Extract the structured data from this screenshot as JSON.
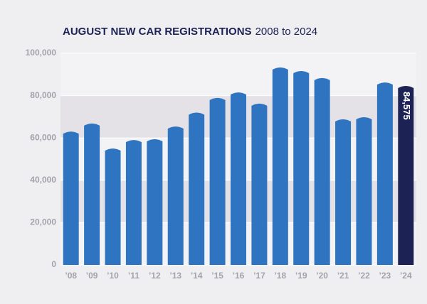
{
  "chart_data": {
    "type": "bar",
    "title": "AUGUST NEW CAR REGISTRATIONS",
    "subtitle": "2008 to 2024",
    "categories": [
      "’08",
      "’09",
      "’10",
      "’11",
      "’12",
      "’13",
      "’14",
      "’15",
      "’16",
      "’17",
      "’18",
      "’19",
      "’20",
      "’21",
      "’22",
      "’23",
      "’24"
    ],
    "values": [
      63000,
      66800,
      55000,
      59000,
      59400,
      65400,
      72000,
      78900,
      81500,
      76200,
      93300,
      91600,
      88300,
      68800,
      69800,
      86200,
      84575
    ],
    "value_labels": [
      null,
      null,
      null,
      null,
      null,
      null,
      null,
      null,
      null,
      null,
      null,
      null,
      null,
      null,
      null,
      null,
      "84,575"
    ],
    "colors": [
      "#2f74c0",
      "#2f74c0",
      "#2f74c0",
      "#2f74c0",
      "#2f74c0",
      "#2f74c0",
      "#2f74c0",
      "#2f74c0",
      "#2f74c0",
      "#2f74c0",
      "#2f74c0",
      "#2f74c0",
      "#2f74c0",
      "#2f74c0",
      "#2f74c0",
      "#2f74c0",
      "#1c2354"
    ],
    "ylim": [
      0,
      100000
    ],
    "yticks": [
      0,
      {
        "value": 20000,
        "label": "20,000"
      },
      {
        "value": 40000,
        "label": "40,000"
      },
      {
        "value": 60000,
        "label": "60,000"
      },
      {
        "value": 80000,
        "label": "80,000"
      },
      {
        "value": 100000,
        "label": "100,000"
      }
    ],
    "grid": true
  }
}
